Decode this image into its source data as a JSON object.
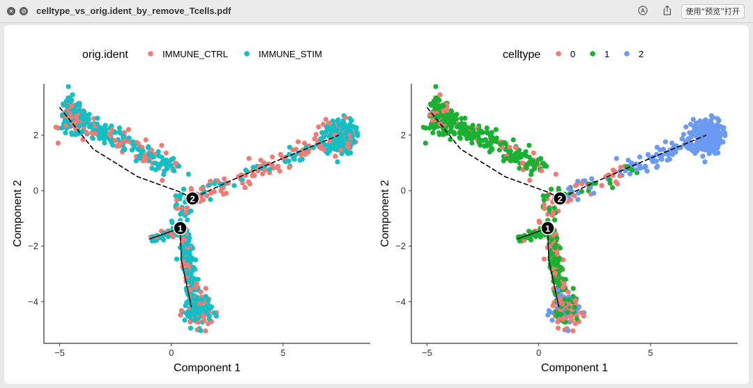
{
  "window": {
    "filename": "celltype_vs_orig.ident_by_remove_Tcells.pdf",
    "open_with_label": "使用“预览”打开",
    "close_icon": "close-icon",
    "minimize_icon": "disabled-circle-icon",
    "markup_icon": "markup-icon",
    "share_icon": "share-icon"
  },
  "chart_data": [
    {
      "type": "scatter",
      "title": "",
      "xlabel": "Component 1",
      "ylabel": "Component 2",
      "xlim": [
        -5.7,
        8.9
      ],
      "ylim": [
        -5.5,
        3.85
      ],
      "x_ticks": [
        -5,
        0,
        5
      ],
      "x_tick_labels": [
        "−5",
        "0",
        "5"
      ],
      "y_ticks": [
        2,
        0,
        -2,
        -4
      ],
      "y_tick_labels": [
        "2",
        "0",
        "−2",
        "−4"
      ],
      "legend_title": "orig.ident",
      "legend_position": "top",
      "series": [
        {
          "name": "IMMUNE_CTRL",
          "color": "#F07B74"
        },
        {
          "name": "IMMUNE_STIM",
          "color": "#12BFC4"
        }
      ],
      "branch_points": [
        {
          "label": "1",
          "x": 0.4,
          "y": -1.35
        },
        {
          "label": "2",
          "x": 0.95,
          "y": -0.28
        }
      ],
      "trajectory": [
        [
          -5.0,
          3.0
        ],
        [
          -3.5,
          1.5
        ],
        [
          -1.5,
          0.5
        ],
        [
          0.4,
          -0.05
        ],
        [
          0.95,
          -0.28
        ],
        [
          2.5,
          0.3
        ],
        [
          4.5,
          1.0
        ],
        [
          7.5,
          2.0
        ]
      ]
    },
    {
      "type": "scatter",
      "title": "",
      "xlabel": "Component 1",
      "ylabel": "Component 2",
      "xlim": [
        -5.7,
        8.9
      ],
      "ylim": [
        -5.5,
        3.85
      ],
      "x_ticks": [
        -5,
        0,
        5
      ],
      "x_tick_labels": [
        "−5",
        "0",
        "5"
      ],
      "y_ticks": [
        2,
        0,
        -2,
        -4
      ],
      "y_tick_labels": [
        "2",
        "0",
        "−2",
        "−4"
      ],
      "legend_title": "celltype",
      "legend_position": "top",
      "series": [
        {
          "name": "0",
          "color": "#F07B74"
        },
        {
          "name": "1",
          "color": "#1AB032"
        },
        {
          "name": "2",
          "color": "#6B9AF2"
        }
      ],
      "branch_points": [
        {
          "label": "1",
          "x": 0.4,
          "y": -1.35
        },
        {
          "label": "2",
          "x": 0.95,
          "y": -0.28
        }
      ],
      "trajectory": [
        [
          -5.0,
          3.0
        ],
        [
          -3.5,
          1.5
        ],
        [
          -1.5,
          0.5
        ],
        [
          0.4,
          -0.05
        ],
        [
          0.95,
          -0.28
        ],
        [
          2.5,
          0.3
        ],
        [
          4.5,
          1.0
        ],
        [
          7.5,
          2.0
        ]
      ]
    }
  ]
}
